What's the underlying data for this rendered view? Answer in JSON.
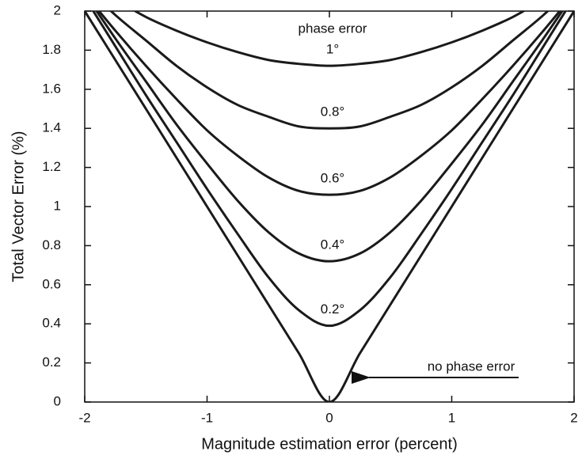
{
  "chart_data": {
    "type": "line",
    "xlabel": "Magnitude estimation error (percent)",
    "ylabel": "Total Vector Error (%)",
    "annotation": "phase error",
    "x": [
      -2,
      -1.75,
      -1.5,
      -1.25,
      -1,
      -0.75,
      -0.5,
      -0.25,
      0,
      0.25,
      0.5,
      0.75,
      1,
      1.25,
      1.5,
      1.75,
      2
    ],
    "series": [
      {
        "name": "no phase error",
        "color": "#1a1a1a",
        "values": [
          2,
          1.75,
          1.5,
          1.25,
          1,
          0.75,
          0.5,
          0.25,
          0,
          0.25,
          0.5,
          0.75,
          1,
          1.25,
          1.5,
          1.75,
          2
        ]
      },
      {
        "name": "0.2°",
        "color": "#1a1a1a",
        "values": [
          2.07,
          1.82,
          1.57,
          1.33,
          1.09,
          0.86,
          0.64,
          0.47,
          0.39,
          0.47,
          0.64,
          0.86,
          1.09,
          1.33,
          1.57,
          1.82,
          2.07
        ]
      },
      {
        "name": "0.4°",
        "color": "#1a1a1a",
        "values": [
          2.09,
          1.86,
          1.64,
          1.42,
          1.22,
          1.03,
          0.87,
          0.76,
          0.72,
          0.76,
          0.87,
          1.03,
          1.22,
          1.42,
          1.64,
          1.86,
          2.09
        ]
      },
      {
        "name": "0.6°",
        "color": "#1a1a1a",
        "values": [
          2.09,
          1.9,
          1.72,
          1.55,
          1.39,
          1.26,
          1.15,
          1.08,
          1.06,
          1.08,
          1.15,
          1.26,
          1.39,
          1.55,
          1.72,
          1.9,
          2.09
        ]
      },
      {
        "name": "0.8°",
        "color": "#1a1a1a",
        "values": [
          2.13,
          1.98,
          1.85,
          1.72,
          1.61,
          1.52,
          1.46,
          1.41,
          1.4,
          1.41,
          1.46,
          1.52,
          1.61,
          1.72,
          1.85,
          1.98,
          2.13
        ]
      },
      {
        "name": "1°",
        "color": "#1a1a1a",
        "values": [
          2.15,
          2.06,
          1.97,
          1.9,
          1.84,
          1.79,
          1.75,
          1.73,
          1.72,
          1.73,
          1.75,
          1.79,
          1.84,
          1.9,
          1.97,
          2.06,
          2.15
        ]
      }
    ],
    "xlim": [
      -2,
      2
    ],
    "ylim": [
      0,
      2
    ],
    "xticks": [
      -2,
      -1,
      0,
      1,
      2
    ],
    "yticks": [
      0,
      0.2,
      0.4,
      0.6,
      0.8,
      1,
      1.2,
      1.4,
      1.6,
      1.8,
      2
    ],
    "grid": false
  }
}
